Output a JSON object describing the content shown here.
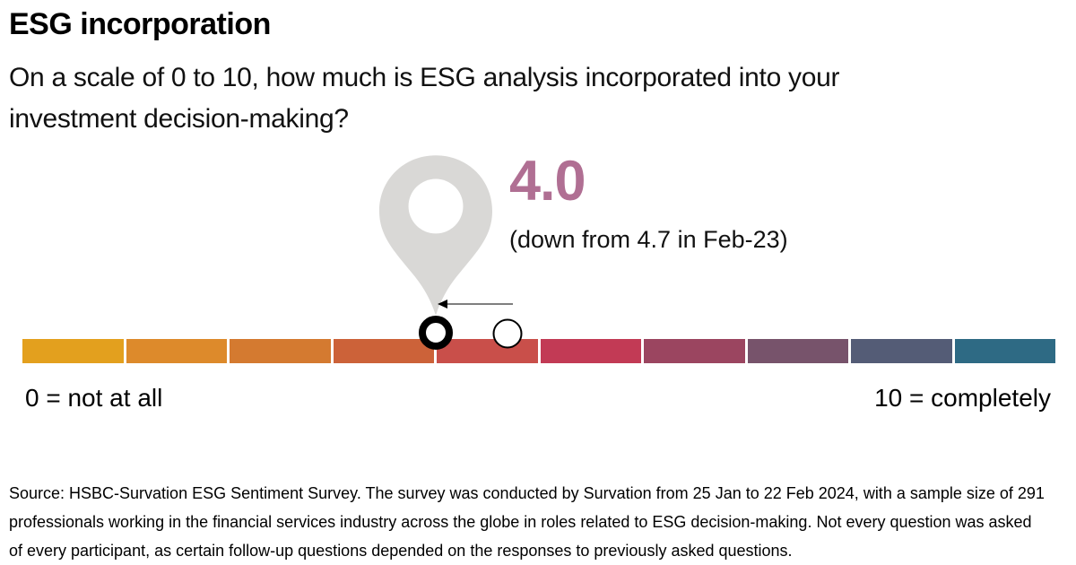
{
  "header": {
    "title": "ESG incorporation",
    "subtitle": "On a scale of 0 to 10, how much is ESG analysis incorporated into your investment decision-making?"
  },
  "chart_data": {
    "type": "scale",
    "title": "ESG incorporation",
    "question": "On a scale of 0 to 10, how much is ESG analysis incorporated into your investment decision-making?",
    "scale_min": 0,
    "scale_max": 10,
    "min_label": "0 = not at all",
    "max_label": "10 = completely",
    "current_value": 4.0,
    "current_value_display": "4.0",
    "previous_value": 4.7,
    "previous_period": "Feb-23",
    "change_note": "(down from 4.7 in Feb-23)",
    "segment_colors": [
      "#e3a01e",
      "#dd8a2b",
      "#d47a30",
      "#cc6239",
      "#c94f4a",
      "#c23a55",
      "#9b4560",
      "#77536b",
      "#545c76",
      "#2e6a84"
    ],
    "value_color": "#b06f93",
    "pin_color": "#d9d8d6",
    "arrow_color": "#7f7f7f",
    "legend_position": "below",
    "grid": false
  },
  "footer": {
    "source": "Source: HSBC-Survation ESG Sentiment Survey. The survey was conducted by Survation from 25 Jan to 22 Feb 2024, with a sample size of 291 professionals working in the financial services industry across the globe in roles related to ESG decision-making. Not every question was asked of every participant, as certain follow-up questions depended on the responses to previously asked questions."
  }
}
